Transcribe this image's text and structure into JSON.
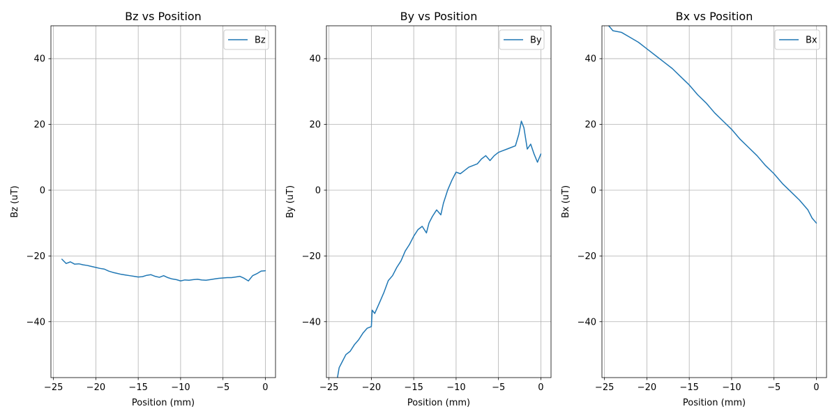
{
  "chart_data": [
    {
      "type": "line",
      "title": "Bz vs Position",
      "xlabel": "Position (mm)",
      "ylabel": "Bz (uT)",
      "xlim": [
        -25.3,
        1.2
      ],
      "ylim": [
        -57,
        50
      ],
      "xticks": [
        -25,
        -20,
        -15,
        -10,
        -5,
        0
      ],
      "xtick_labels": [
        "−25",
        "−20",
        "−15",
        "−10",
        "−5",
        "0"
      ],
      "yticks": [
        -40,
        -20,
        0,
        20,
        40
      ],
      "ytick_labels": [
        "−40",
        "−20",
        "0",
        "20",
        "40"
      ],
      "grid": true,
      "legend_position": "top-right",
      "series": [
        {
          "name": "Bz",
          "color": "#1f77b4",
          "points": [
            [
              -24,
              -21.0
            ],
            [
              -23.5,
              -22.3
            ],
            [
              -23,
              -21.8
            ],
            [
              -22.5,
              -22.5
            ],
            [
              -22,
              -22.4
            ],
            [
              -21.5,
              -22.7
            ],
            [
              -21,
              -22.9
            ],
            [
              -20.5,
              -23.2
            ],
            [
              -20,
              -23.5
            ],
            [
              -19.5,
              -23.8
            ],
            [
              -19,
              -24.0
            ],
            [
              -18.5,
              -24.6
            ],
            [
              -18,
              -25.0
            ],
            [
              -17.5,
              -25.3
            ],
            [
              -17,
              -25.6
            ],
            [
              -16.5,
              -25.8
            ],
            [
              -16,
              -26.0
            ],
            [
              -15.5,
              -26.2
            ],
            [
              -15,
              -26.4
            ],
            [
              -14.5,
              -26.3
            ],
            [
              -14,
              -25.9
            ],
            [
              -13.5,
              -25.7
            ],
            [
              -13,
              -26.2
            ],
            [
              -12.5,
              -26.5
            ],
            [
              -12,
              -26.0
            ],
            [
              -11.5,
              -26.6
            ],
            [
              -11,
              -27.0
            ],
            [
              -10.5,
              -27.2
            ],
            [
              -10,
              -27.6
            ],
            [
              -9.5,
              -27.3
            ],
            [
              -9,
              -27.4
            ],
            [
              -8.5,
              -27.2
            ],
            [
              -8,
              -27.1
            ],
            [
              -7.5,
              -27.3
            ],
            [
              -7,
              -27.4
            ],
            [
              -6.5,
              -27.2
            ],
            [
              -6,
              -27.0
            ],
            [
              -5.5,
              -26.8
            ],
            [
              -5,
              -26.7
            ],
            [
              -4.5,
              -26.6
            ],
            [
              -4,
              -26.6
            ],
            [
              -3.5,
              -26.4
            ],
            [
              -3,
              -26.2
            ],
            [
              -2.5,
              -26.8
            ],
            [
              -2,
              -27.6
            ],
            [
              -1.5,
              -26.0
            ],
            [
              -1,
              -25.4
            ],
            [
              -0.5,
              -24.6
            ],
            [
              0,
              -24.5
            ]
          ]
        }
      ]
    },
    {
      "type": "line",
      "title": "By vs Position",
      "xlabel": "Position (mm)",
      "ylabel": "By (uT)",
      "xlim": [
        -25.3,
        1.2
      ],
      "ylim": [
        -57,
        50
      ],
      "xticks": [
        -25,
        -20,
        -15,
        -10,
        -5,
        0
      ],
      "xtick_labels": [
        "−25",
        "−20",
        "−15",
        "−10",
        "−5",
        "0"
      ],
      "yticks": [
        -40,
        -20,
        0,
        20,
        40
      ],
      "ytick_labels": [
        "−40",
        "−20",
        "0",
        "20",
        "40"
      ],
      "grid": true,
      "legend_position": "top-right",
      "series": [
        {
          "name": "By",
          "color": "#1f77b4",
          "points": [
            [
              -24,
              -57.0
            ],
            [
              -23.8,
              -54.0
            ],
            [
              -23.5,
              -52.5
            ],
            [
              -23,
              -50.0
            ],
            [
              -22.5,
              -49.0
            ],
            [
              -22,
              -47.0
            ],
            [
              -21.5,
              -45.5
            ],
            [
              -21,
              -43.5
            ],
            [
              -20.5,
              -42.0
            ],
            [
              -20,
              -41.5
            ],
            [
              -19.9,
              -36.5
            ],
            [
              -19.6,
              -37.5
            ],
            [
              -19,
              -34.0
            ],
            [
              -18.5,
              -31.0
            ],
            [
              -18,
              -27.5
            ],
            [
              -17.5,
              -26.0
            ],
            [
              -17,
              -23.5
            ],
            [
              -16.5,
              -21.5
            ],
            [
              -16,
              -18.5
            ],
            [
              -15.5,
              -16.5
            ],
            [
              -15,
              -14.0
            ],
            [
              -14.5,
              -12.0
            ],
            [
              -14,
              -11.0
            ],
            [
              -13.5,
              -13.0
            ],
            [
              -13.2,
              -10.0
            ],
            [
              -12.8,
              -8.0
            ],
            [
              -12.3,
              -6.0
            ],
            [
              -11.8,
              -7.5
            ],
            [
              -11.5,
              -4.0
            ],
            [
              -11,
              0.0
            ],
            [
              -10.5,
              3.0
            ],
            [
              -10,
              5.5
            ],
            [
              -9.5,
              5.0
            ],
            [
              -9,
              6.0
            ],
            [
              -8.5,
              7.0
            ],
            [
              -8,
              7.5
            ],
            [
              -7.5,
              8.0
            ],
            [
              -7,
              9.5
            ],
            [
              -6.5,
              10.5
            ],
            [
              -6,
              9.0
            ],
            [
              -5.5,
              10.5
            ],
            [
              -5,
              11.5
            ],
            [
              -4.5,
              12.0
            ],
            [
              -4,
              12.5
            ],
            [
              -3.5,
              13.0
            ],
            [
              -3,
              13.5
            ],
            [
              -2.6,
              17.0
            ],
            [
              -2.3,
              21.0
            ],
            [
              -2,
              19.0
            ],
            [
              -1.6,
              12.5
            ],
            [
              -1.2,
              14.0
            ],
            [
              -0.8,
              11.0
            ],
            [
              -0.4,
              8.5
            ],
            [
              0,
              11.0
            ]
          ]
        }
      ]
    },
    {
      "type": "line",
      "title": "Bx vs Position",
      "xlabel": "Position (mm)",
      "ylabel": "Bx (uT)",
      "xlim": [
        -25.3,
        1.2
      ],
      "ylim": [
        -57,
        50
      ],
      "xticks": [
        -25,
        -20,
        -15,
        -10,
        -5,
        0
      ],
      "xtick_labels": [
        "−25",
        "−20",
        "−15",
        "−10",
        "−5",
        "0"
      ],
      "yticks": [
        -40,
        -20,
        0,
        20,
        40
      ],
      "ytick_labels": [
        "−40",
        "−20",
        "0",
        "20",
        "40"
      ],
      "grid": true,
      "legend_position": "top-right",
      "series": [
        {
          "name": "Bx",
          "color": "#1f77b4",
          "points": [
            [
              -24.5,
              50.0
            ],
            [
              -24,
              48.5
            ],
            [
              -23,
              48.0
            ],
            [
              -22,
              46.5
            ],
            [
              -21,
              45.0
            ],
            [
              -20,
              43.0
            ],
            [
              -19,
              41.0
            ],
            [
              -18,
              39.0
            ],
            [
              -17,
              37.0
            ],
            [
              -16,
              34.5
            ],
            [
              -15,
              32.0
            ],
            [
              -14,
              29.0
            ],
            [
              -13,
              26.5
            ],
            [
              -12,
              23.5
            ],
            [
              -11,
              21.0
            ],
            [
              -10,
              18.5
            ],
            [
              -9,
              15.5
            ],
            [
              -8,
              13.0
            ],
            [
              -7,
              10.5
            ],
            [
              -6,
              7.5
            ],
            [
              -5,
              5.0
            ],
            [
              -4,
              2.0
            ],
            [
              -3,
              -0.5
            ],
            [
              -2,
              -3.0
            ],
            [
              -1,
              -6.0
            ],
            [
              -0.5,
              -8.5
            ],
            [
              0,
              -10.0
            ]
          ]
        }
      ]
    }
  ]
}
